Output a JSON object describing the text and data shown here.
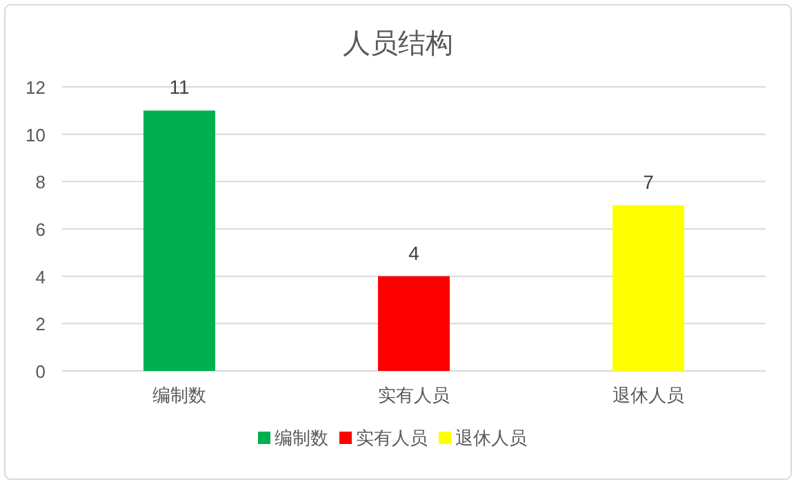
{
  "chart_data": {
    "type": "bar",
    "title": "人员结构",
    "categories": [
      "编制数",
      "实有人员",
      "退休人员"
    ],
    "series": [
      {
        "name": "编制数",
        "color": "#00b050",
        "values": [
          11,
          null,
          null
        ]
      },
      {
        "name": "实有人员",
        "color": "#ff0000",
        "values": [
          null,
          4,
          null
        ]
      },
      {
        "name": "退休人员",
        "color": "#ffff00",
        "values": [
          null,
          null,
          7
        ]
      }
    ],
    "stacked": true,
    "ylim": [
      0,
      12
    ],
    "yticks": [
      0,
      2,
      4,
      6,
      8,
      10,
      12
    ],
    "grid": "y",
    "legend": "bottom",
    "data_labels": true
  }
}
